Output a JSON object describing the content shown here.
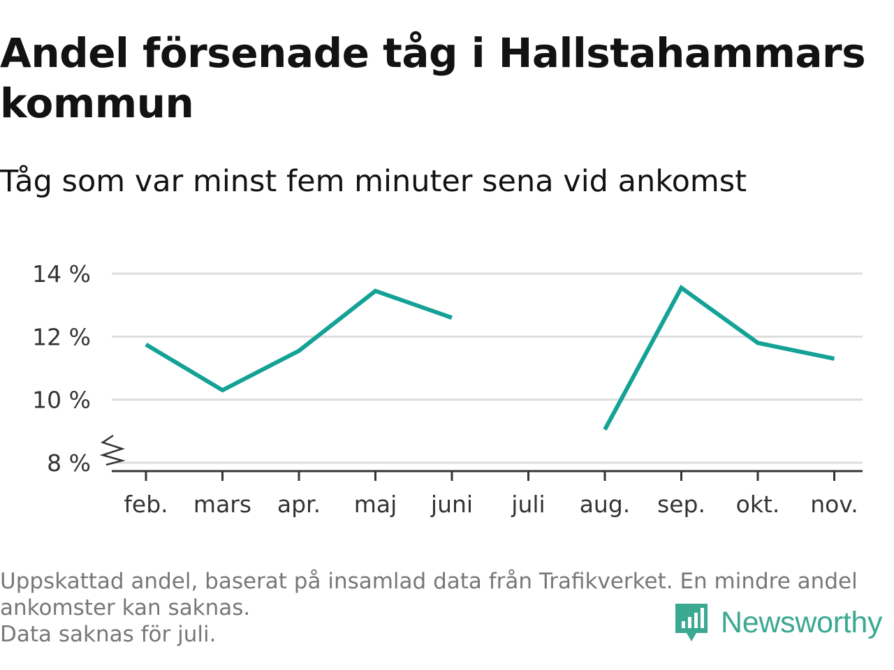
{
  "title": "Andel försenade tåg i Hallstahammars kommun",
  "subtitle": "Tåg som var minst fem minuter sena vid ankomst",
  "footnote": {
    "lines": [
      "Uppskattad andel, baserat på insamlad data från Trafikverket. En mindre andel",
      "ankomster kan saknas.",
      "Data saknas för juli."
    ]
  },
  "brand": {
    "name": "Newsworthy",
    "icon": "newsworthy-logo-icon",
    "color": "#3ba892"
  },
  "colors": {
    "line": "#14a296",
    "grid": "#dddddd",
    "axis": "#333333",
    "text": "#333333"
  },
  "chart_data": {
    "type": "line",
    "categories": [
      "feb.",
      "mars",
      "apr.",
      "maj",
      "juni",
      "juli",
      "aug.",
      "sep.",
      "okt.",
      "nov."
    ],
    "series": [
      {
        "values": [
          11.75,
          10.3,
          11.55,
          13.45,
          12.6,
          null,
          9.05,
          13.55,
          11.8,
          11.3
        ]
      }
    ],
    "y_ticks": [
      8,
      10,
      12,
      14
    ],
    "y_tick_labels": [
      "8 %",
      "10 %",
      "12 %",
      "14 %"
    ],
    "ylim": [
      8,
      14
    ],
    "y_axis_break": true,
    "grid": true,
    "xlabel": "",
    "ylabel": ""
  }
}
